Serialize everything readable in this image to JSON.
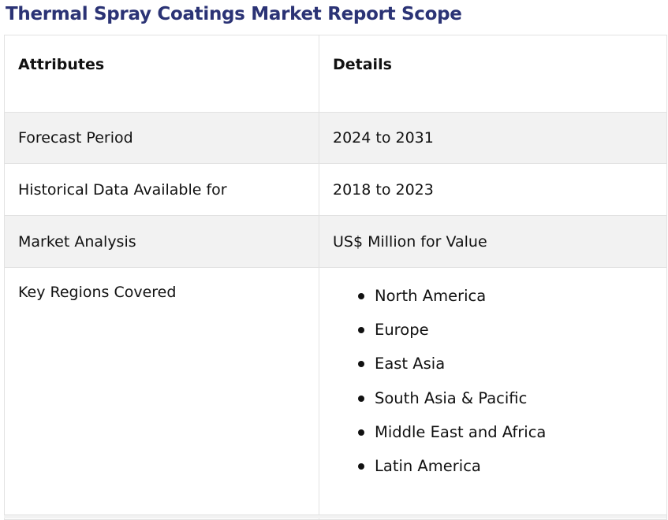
{
  "title": "Thermal Spray Coatings Market Report Scope",
  "table": {
    "headers": {
      "attributes": "Attributes",
      "details": "Details"
    },
    "rows": [
      {
        "attribute": "Forecast Period",
        "detail": "2024 to 2031"
      },
      {
        "attribute": "Historical Data Available for",
        "detail": "2018 to 2023"
      },
      {
        "attribute": "Market Analysis",
        "detail": "US$ Million for Value"
      }
    ],
    "regions": {
      "attribute": "Key Regions Covered",
      "items": [
        "North America",
        "Europe",
        "East Asia",
        "South Asia & Pacific",
        "Middle East and Africa",
        "Latin America"
      ]
    }
  },
  "colors": {
    "title": "#2b3375",
    "stripe": "#f2f2f2",
    "border": "#e2e2e2"
  }
}
